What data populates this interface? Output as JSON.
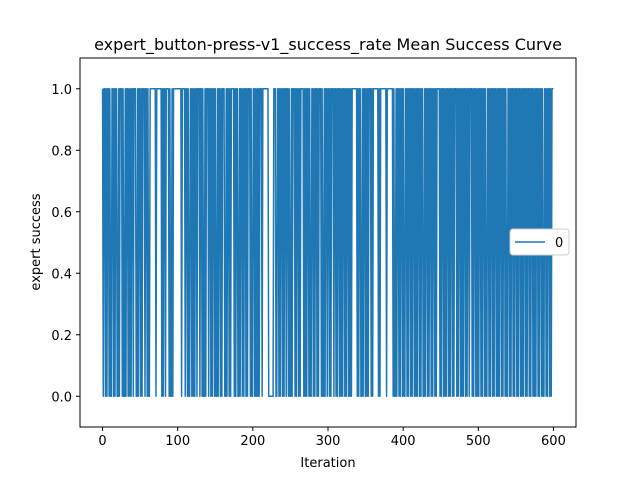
{
  "chart_data": {
    "type": "line",
    "title": "expert_button-press-v1_success_rate Mean Success Curve",
    "xlabel": "Iteration",
    "ylabel": "expert success",
    "xlim": [
      -30,
      630
    ],
    "ylim": [
      -0.1,
      1.1
    ],
    "xticks": [
      0,
      100,
      200,
      300,
      400,
      500,
      600
    ],
    "yticks": [
      0.0,
      0.2,
      0.4,
      0.6,
      0.8,
      1.0
    ],
    "xtick_labels": [
      "0",
      "100",
      "200",
      "300",
      "400",
      "500",
      "600"
    ],
    "ytick_labels": [
      "0.0",
      "0.2",
      "0.4",
      "0.6",
      "0.8",
      "1.0"
    ],
    "grid": false,
    "legend_position": "center-right",
    "series": [
      {
        "name": "0",
        "color": "#1f77b4",
        "x_start": 0,
        "x_end": 600,
        "y_start": 1.0,
        "y_end": 1.0,
        "y_values_note_free": true,
        "values": [
          1,
          0,
          1,
          1,
          0,
          1,
          0,
          1,
          1,
          0,
          1,
          0,
          0,
          1,
          1,
          0,
          1,
          0,
          1,
          1,
          0,
          0,
          1,
          0,
          1,
          1,
          1,
          0,
          1,
          0,
          0,
          1,
          0,
          1,
          1,
          0,
          1,
          0,
          1,
          0,
          1,
          1,
          0,
          1,
          1,
          1,
          0,
          0,
          1,
          0,
          1,
          1,
          0,
          1,
          0,
          1,
          1,
          1,
          0,
          1,
          1,
          0,
          1,
          0,
          0,
          1,
          1,
          1,
          1,
          1,
          1,
          1,
          1,
          0,
          1,
          1,
          1,
          1,
          1,
          1,
          1,
          0,
          1,
          0,
          1,
          1,
          0,
          1,
          1,
          1,
          1,
          0,
          1,
          0,
          0,
          1,
          0,
          1,
          1,
          1,
          1,
          1,
          1,
          1,
          1,
          1,
          1,
          1,
          0,
          1,
          1,
          1,
          1,
          0,
          1,
          1,
          0,
          1,
          0,
          0,
          1,
          1,
          0,
          1,
          0,
          1,
          0,
          1,
          1,
          0,
          1,
          1,
          1,
          0,
          1,
          1,
          0,
          1,
          0,
          0,
          1,
          0,
          1,
          1,
          1,
          0,
          1,
          1,
          0,
          1,
          0,
          1,
          1,
          0,
          1,
          0,
          0,
          1,
          0,
          1,
          1,
          0,
          1,
          0,
          1,
          1,
          1,
          0,
          0,
          1,
          0,
          1,
          1,
          0,
          1,
          0,
          1,
          1,
          1,
          1,
          0,
          1,
          0,
          1,
          1,
          0,
          0,
          1,
          0,
          1,
          1,
          0,
          1,
          0,
          1,
          1,
          0,
          1,
          0,
          1,
          1,
          1,
          0,
          1,
          0,
          0,
          1,
          1,
          0,
          1,
          0,
          1,
          0,
          1,
          0,
          1,
          1,
          1,
          0,
          1,
          1,
          1,
          1,
          1,
          1,
          1,
          1,
          0,
          0,
          0,
          0,
          0,
          0,
          0,
          1,
          1,
          1,
          0,
          0,
          1,
          1,
          0,
          1,
          0,
          1,
          1,
          0,
          1,
          0,
          1,
          1,
          0,
          1,
          1,
          0,
          1,
          0,
          0,
          1,
          0,
          1,
          1,
          1,
          0,
          1,
          0,
          1,
          1,
          0,
          1,
          0,
          1,
          1,
          1,
          1,
          0,
          1,
          0,
          1,
          0,
          1,
          1,
          0,
          1,
          0,
          0,
          1,
          1,
          0,
          1,
          0,
          1,
          1,
          0,
          1,
          0,
          1,
          1,
          1,
          0,
          1,
          0,
          0,
          1,
          0,
          1,
          1,
          0,
          1,
          1,
          0,
          1,
          0,
          1,
          1,
          1,
          0,
          1,
          1,
          0,
          1,
          0,
          1,
          1,
          0,
          1,
          0,
          1,
          0,
          1,
          1,
          0,
          1,
          0,
          1,
          1,
          0,
          1,
          0,
          1,
          0,
          1,
          1,
          1,
          1,
          1,
          1,
          1,
          0,
          1,
          0,
          1,
          1,
          0,
          0,
          1,
          0,
          1,
          1,
          0,
          1,
          0,
          1,
          0,
          1,
          1,
          1,
          0,
          1,
          0,
          1,
          1,
          1,
          1,
          1,
          1,
          1,
          0,
          1,
          0,
          1,
          1,
          1,
          1,
          1,
          1,
          1,
          1,
          0,
          1,
          1,
          1,
          1,
          1,
          1,
          1,
          1,
          0,
          1,
          0,
          0,
          1,
          0,
          1,
          1,
          0,
          1,
          0,
          1,
          1,
          0,
          1,
          0,
          0,
          1,
          1,
          0,
          1,
          0,
          1,
          1,
          0,
          1,
          0,
          1,
          1,
          0,
          1,
          0,
          1,
          0,
          1,
          1,
          0,
          1,
          0,
          1,
          1,
          0,
          0,
          1,
          0,
          1,
          1,
          0,
          1,
          0,
          1,
          1,
          0,
          1,
          0,
          1,
          1,
          0,
          1,
          0,
          1,
          1,
          1,
          1,
          0,
          1,
          0,
          1,
          1,
          0,
          1,
          0,
          1,
          0,
          1,
          1,
          0,
          1,
          0,
          1,
          1,
          0,
          1,
          0,
          1,
          1,
          1,
          0,
          1,
          0,
          1,
          1,
          0,
          1,
          0,
          1,
          0,
          1,
          1,
          0,
          1,
          0,
          1,
          1,
          0,
          1,
          1,
          1,
          0,
          1,
          0,
          1,
          1,
          0,
          1,
          0,
          1,
          0,
          1,
          1,
          0,
          1,
          0,
          1,
          1,
          0,
          1,
          0,
          0,
          1,
          1,
          0,
          1,
          0,
          1,
          1,
          0,
          1,
          0,
          1,
          1,
          0,
          1,
          0,
          1,
          0,
          1,
          1,
          0,
          1,
          0,
          1,
          1,
          0,
          1,
          0,
          0,
          1,
          1,
          0,
          1,
          0,
          1,
          1,
          0,
          1,
          0,
          1,
          1,
          0,
          1,
          0,
          1,
          1,
          0,
          1,
          0,
          1,
          0,
          1,
          1,
          0,
          1,
          0,
          1,
          1,
          0,
          1,
          0,
          1,
          1,
          0,
          1,
          0,
          1,
          0,
          1,
          1,
          0,
          1,
          0,
          1,
          1,
          0,
          1,
          0,
          0,
          1,
          1,
          0,
          1,
          0,
          1,
          1,
          0,
          1,
          0,
          1,
          1,
          1
        ]
      }
    ]
  }
}
